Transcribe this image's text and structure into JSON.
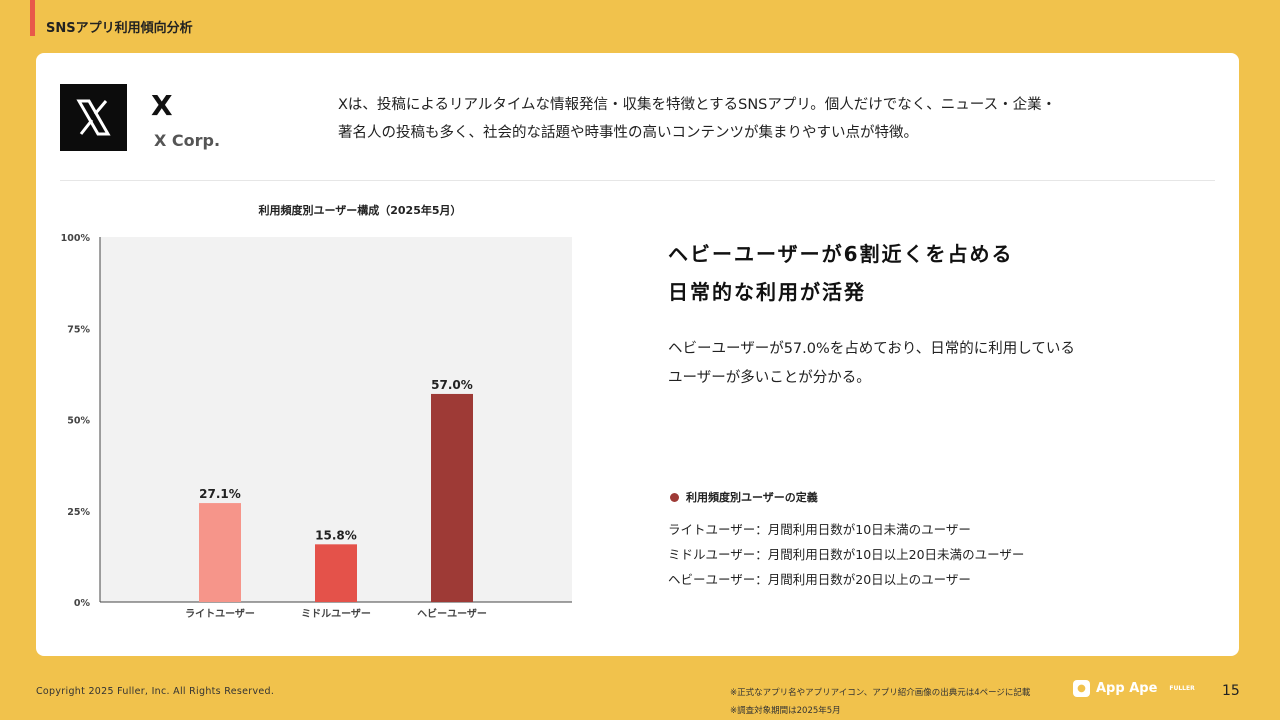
{
  "header": {
    "section_title": "SNSアプリ利用傾向分析"
  },
  "app": {
    "name": "X",
    "company": "X Corp.",
    "logo_icon": "x-logo-icon",
    "description_lines": [
      "Xは、投稿によるリアルタイムな情報発信・収集を特徴とするSNSアプリ。個人だけでなく、ニュース・企業・",
      "著名人の投稿も多く、社会的な話題や時事性の高いコンテンツが集まりやすい点が特徴。"
    ]
  },
  "chart_data": {
    "type": "bar",
    "title": "利用頻度別ユーザー構成（2025年5月）",
    "categories": [
      "ライトユーザー",
      "ミドルユーザー",
      "ヘビーユーザー"
    ],
    "values": [
      27.1,
      15.8,
      57.0
    ],
    "value_labels": [
      "27.1%",
      "15.8%",
      "57.0%"
    ],
    "colors": [
      "#F6958A",
      "#E4524A",
      "#9E3A36"
    ],
    "ylim": [
      0,
      100
    ],
    "yticks": [
      "0%",
      "25%",
      "50%",
      "75%",
      "100%"
    ],
    "ytick_values": [
      0,
      25,
      50,
      75,
      100
    ],
    "xlabel": "",
    "ylabel": "",
    "grid": false,
    "legend": "none"
  },
  "insight": {
    "headline_lines": [
      "ヘビーユーザーが6割近くを占める",
      "日常的な利用が活発"
    ],
    "body_lines": [
      "ヘビーユーザーが57.0%を占めており、日常的に利用している",
      "ユーザーが多いことが分かる。"
    ]
  },
  "definitions": {
    "title": "利用頻度別ユーザーの定義",
    "items": [
      "ライトユーザー：月間利用日数が10日未満のユーザー",
      "ミドルユーザー：月間利用日数が10日以上20日未満のユーザー",
      "ヘビーユーザー：月間利用日数が20日以上のユーザー"
    ]
  },
  "footer": {
    "copyright": "Copyright 2025 Fuller, Inc. All Rights Reserved.",
    "notes": [
      "※正式なアプリ名やアプリアイコン、アプリ紹介画像の出典元は4ページに記載",
      "※調査対象期間は2025年5月"
    ],
    "brand_name": "App Ape",
    "brand_sub": "FULLER",
    "page_number": "15"
  },
  "colors": {
    "background": "#F1C24C",
    "accent": "#E8584A",
    "card": "#FFFFFF"
  }
}
